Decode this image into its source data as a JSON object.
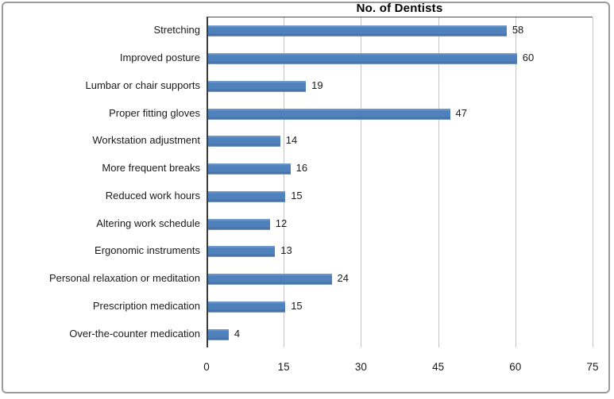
{
  "figure": {
    "border_color": "#9a9a9a",
    "background": "#ffffff"
  },
  "chart_data": {
    "type": "bar",
    "orientation": "horizontal",
    "title": "No. of Dentists",
    "categories": [
      "Stretching",
      "Improved posture",
      "Lumbar or chair supports",
      "Proper fitting gloves",
      "Workstation adjustment",
      "More frequent breaks",
      "Reduced work hours",
      "Altering work schedule",
      "Ergonomic instruments",
      "Personal relaxation or meditation",
      "Prescription medication",
      "Over-the-counter medication"
    ],
    "values": [
      58,
      60,
      19,
      47,
      14,
      16,
      15,
      12,
      13,
      24,
      15,
      4
    ],
    "data_labels": [
      58,
      60,
      19,
      47,
      14,
      16,
      15,
      12,
      13,
      24,
      15,
      4
    ],
    "xlabel": "",
    "ylabel": "",
    "xlim": [
      0,
      75
    ],
    "xticks": [
      0,
      15,
      30,
      45,
      60,
      75
    ],
    "grid": "vertical-only",
    "legend": "none",
    "bar_color": "#4f81bd",
    "bar_color_light": "#7ba1d0",
    "bar_color_dark": "#44699c",
    "gridline_color": "#c4c4c4",
    "axis_line_color": "#3c3c3c",
    "label_color": "#1a1a1a"
  }
}
